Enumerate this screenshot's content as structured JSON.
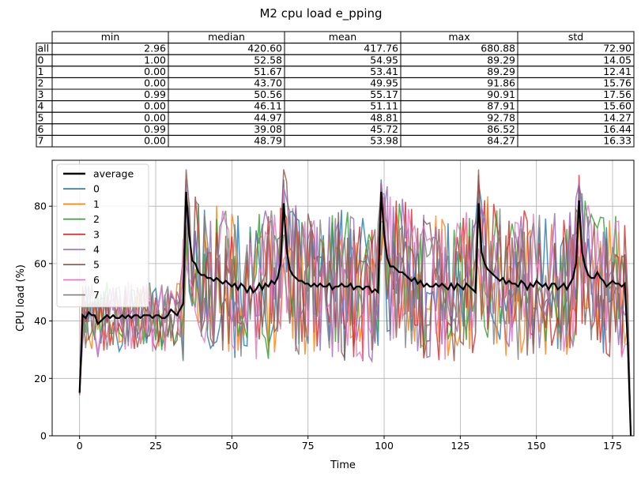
{
  "figure_title": "M2 cpu load e_pping",
  "table": {
    "columns": [
      "min",
      "median",
      "mean",
      "max",
      "std"
    ],
    "rows": [
      {
        "label": "all",
        "values": [
          "2.96",
          "420.60",
          "417.76",
          "680.88",
          "72.90"
        ]
      },
      {
        "label": "0",
        "values": [
          "1.00",
          "52.58",
          "54.95",
          "89.29",
          "14.05"
        ]
      },
      {
        "label": "1",
        "values": [
          "0.00",
          "51.67",
          "53.41",
          "89.29",
          "12.41"
        ]
      },
      {
        "label": "2",
        "values": [
          "0.00",
          "43.70",
          "49.95",
          "91.86",
          "15.76"
        ]
      },
      {
        "label": "3",
        "values": [
          "0.99",
          "50.56",
          "55.17",
          "90.91",
          "17.56"
        ]
      },
      {
        "label": "4",
        "values": [
          "0.00",
          "46.11",
          "51.11",
          "87.91",
          "15.60"
        ]
      },
      {
        "label": "5",
        "values": [
          "0.00",
          "44.97",
          "48.81",
          "92.78",
          "14.27"
        ]
      },
      {
        "label": "6",
        "values": [
          "0.99",
          "39.08",
          "45.72",
          "86.52",
          "16.44"
        ]
      },
      {
        "label": "7",
        "values": [
          "0.00",
          "48.79",
          "53.98",
          "84.27",
          "16.33"
        ]
      }
    ]
  },
  "chart_data": {
    "type": "line",
    "title": "M2 cpu load e_pping",
    "xlabel": "Time",
    "ylabel": "CPU load (%)",
    "xlim": [
      -9,
      182
    ],
    "ylim": [
      0,
      96
    ],
    "xticks": [
      0,
      25,
      50,
      75,
      100,
      125,
      150,
      175
    ],
    "yticks": [
      0,
      20,
      40,
      60,
      80
    ],
    "grid": true,
    "legend_position": "top-left",
    "average": {
      "name": "average",
      "color": "#000000",
      "points": [
        [
          0,
          15
        ],
        [
          1,
          42
        ],
        [
          2,
          41
        ],
        [
          3,
          43
        ],
        [
          4,
          42
        ],
        [
          5,
          42
        ],
        [
          6,
          39
        ],
        [
          7,
          40
        ],
        [
          8,
          41
        ],
        [
          9,
          42
        ],
        [
          10,
          41
        ],
        [
          11,
          42
        ],
        [
          12,
          41
        ],
        [
          13,
          41
        ],
        [
          14,
          42
        ],
        [
          15,
          41
        ],
        [
          16,
          42
        ],
        [
          17,
          41
        ],
        [
          18,
          42
        ],
        [
          19,
          42
        ],
        [
          20,
          41
        ],
        [
          21,
          42
        ],
        [
          22,
          42
        ],
        [
          23,
          42
        ],
        [
          24,
          41
        ],
        [
          25,
          42
        ],
        [
          26,
          42
        ],
        [
          27,
          41
        ],
        [
          28,
          41
        ],
        [
          29,
          42
        ],
        [
          30,
          44
        ],
        [
          31,
          43
        ],
        [
          32,
          42
        ],
        [
          33,
          44
        ],
        [
          34,
          46
        ],
        [
          35,
          85
        ],
        [
          36,
          70
        ],
        [
          37,
          61
        ],
        [
          38,
          60
        ],
        [
          39,
          57
        ],
        [
          40,
          56
        ],
        [
          41,
          56
        ],
        [
          42,
          55
        ],
        [
          43,
          55
        ],
        [
          44,
          54
        ],
        [
          45,
          55
        ],
        [
          46,
          54
        ],
        [
          47,
          53
        ],
        [
          48,
          54
        ],
        [
          49,
          53
        ],
        [
          50,
          52
        ],
        [
          51,
          53
        ],
        [
          52,
          51
        ],
        [
          53,
          53
        ],
        [
          54,
          52
        ],
        [
          55,
          50
        ],
        [
          56,
          52
        ],
        [
          57,
          50
        ],
        [
          58,
          51
        ],
        [
          59,
          53
        ],
        [
          60,
          51
        ],
        [
          61,
          53
        ],
        [
          62,
          52
        ],
        [
          63,
          54
        ],
        [
          64,
          53
        ],
        [
          65,
          55
        ],
        [
          66,
          60
        ],
        [
          67,
          81
        ],
        [
          68,
          65
        ],
        [
          69,
          58
        ],
        [
          70,
          56
        ],
        [
          71,
          55
        ],
        [
          72,
          54
        ],
        [
          73,
          54
        ],
        [
          74,
          53
        ],
        [
          75,
          53
        ],
        [
          76,
          52
        ],
        [
          77,
          53
        ],
        [
          78,
          52
        ],
        [
          79,
          53
        ],
        [
          80,
          52
        ],
        [
          81,
          52
        ],
        [
          82,
          53
        ],
        [
          83,
          51
        ],
        [
          84,
          52
        ],
        [
          85,
          52
        ],
        [
          86,
          53
        ],
        [
          87,
          52
        ],
        [
          88,
          52
        ],
        [
          89,
          53
        ],
        [
          90,
          51
        ],
        [
          91,
          52
        ],
        [
          92,
          52
        ],
        [
          93,
          51
        ],
        [
          94,
          52
        ],
        [
          95,
          52
        ],
        [
          96,
          50
        ],
        [
          97,
          51
        ],
        [
          98,
          50
        ],
        [
          99,
          85
        ],
        [
          100,
          70
        ],
        [
          101,
          62
        ],
        [
          102,
          59
        ],
        [
          103,
          59
        ],
        [
          104,
          58
        ],
        [
          105,
          57
        ],
        [
          106,
          57
        ],
        [
          107,
          56
        ],
        [
          108,
          55
        ],
        [
          109,
          54
        ],
        [
          110,
          55
        ],
        [
          111,
          53
        ],
        [
          112,
          54
        ],
        [
          113,
          52
        ],
        [
          114,
          53
        ],
        [
          115,
          52
        ],
        [
          116,
          52
        ],
        [
          117,
          53
        ],
        [
          118,
          52
        ],
        [
          119,
          53
        ],
        [
          120,
          52
        ],
        [
          121,
          51
        ],
        [
          122,
          53
        ],
        [
          123,
          51
        ],
        [
          124,
          53
        ],
        [
          125,
          52
        ],
        [
          126,
          51
        ],
        [
          127,
          53
        ],
        [
          128,
          52
        ],
        [
          129,
          51
        ],
        [
          130,
          50
        ],
        [
          131,
          81
        ],
        [
          132,
          64
        ],
        [
          133,
          60
        ],
        [
          134,
          58
        ],
        [
          135,
          57
        ],
        [
          136,
          56
        ],
        [
          137,
          55
        ],
        [
          138,
          54
        ],
        [
          139,
          55
        ],
        [
          140,
          53
        ],
        [
          141,
          54
        ],
        [
          142,
          53
        ],
        [
          143,
          53
        ],
        [
          144,
          52
        ],
        [
          145,
          54
        ],
        [
          146,
          53
        ],
        [
          147,
          51
        ],
        [
          148,
          53
        ],
        [
          149,
          52
        ],
        [
          150,
          54
        ],
        [
          151,
          53
        ],
        [
          152,
          52
        ],
        [
          153,
          53
        ],
        [
          154,
          51
        ],
        [
          155,
          53
        ],
        [
          156,
          53
        ],
        [
          157,
          51
        ],
        [
          158,
          52
        ],
        [
          159,
          53
        ],
        [
          160,
          51
        ],
        [
          161,
          53
        ],
        [
          162,
          55
        ],
        [
          163,
          60
        ],
        [
          164,
          82
        ],
        [
          165,
          64
        ],
        [
          166,
          59
        ],
        [
          167,
          56
        ],
        [
          168,
          55
        ],
        [
          169,
          55
        ],
        [
          170,
          57
        ],
        [
          171,
          55
        ],
        [
          172,
          54
        ],
        [
          173,
          52
        ],
        [
          174,
          53
        ],
        [
          175,
          54
        ],
        [
          176,
          53
        ],
        [
          177,
          53
        ],
        [
          178,
          52
        ],
        [
          179,
          53
        ],
        [
          180,
          32
        ],
        [
          181,
          0
        ]
      ]
    },
    "series": [
      {
        "name": "0",
        "color": "#1f77b4",
        "seed": 101,
        "max": 89.3
      },
      {
        "name": "1",
        "color": "#ff7f0e",
        "seed": 202,
        "max": 89.3
      },
      {
        "name": "2",
        "color": "#2ca02c",
        "seed": 303,
        "max": 91.9
      },
      {
        "name": "3",
        "color": "#d62728",
        "seed": 404,
        "max": 90.9
      },
      {
        "name": "4",
        "color": "#9467bd",
        "seed": 505,
        "max": 87.9
      },
      {
        "name": "5",
        "color": "#8c564b",
        "seed": 606,
        "max": 92.8
      },
      {
        "name": "6",
        "color": "#e377c2",
        "seed": 707,
        "max": 86.5
      },
      {
        "name": "7",
        "color": "#7f7f7f",
        "seed": 808,
        "max": 84.3
      }
    ]
  }
}
